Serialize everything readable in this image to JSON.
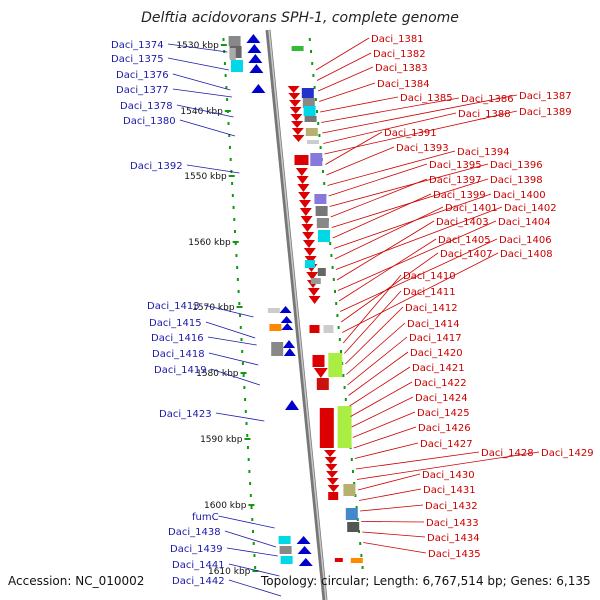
{
  "title": "Delftia acidovorans SPH-1, complete genome",
  "accession": "Accession: NC_010002",
  "summary": "Topology: circular; Length: 6,767,514 bp; Genes: 6,135",
  "colors": {
    "forward": "#0000cc",
    "reverse": "#dd0000",
    "label_left": "#1a1aaa",
    "label_right": "#cc0000",
    "ruler": "#119911",
    "backbone": "#999999"
  },
  "scale_ticks": [
    "1530 kbp",
    "1540 kbp",
    "1550 kbp",
    "1560 kbp",
    "1570 kbp",
    "1580 kbp",
    "1590 kbp",
    "1600 kbp",
    "1610 kbp"
  ],
  "left_labels": [
    "Daci_1374",
    "Daci_1375",
    "Daci_1376",
    "Daci_1377",
    "Daci_1378",
    "Daci_1380",
    "Daci_1392",
    "Daci_1413",
    "Daci_1415",
    "Daci_1416",
    "Daci_1418",
    "Daci_1419",
    "Daci_1423",
    "fumC",
    "Daci_1438",
    "Daci_1439",
    "Daci_1441",
    "Daci_1442"
  ],
  "right_labels": [
    "Daci_1381",
    "Daci_1382",
    "Daci_1383",
    "Daci_1384",
    "Daci_1385",
    "Daci_1386",
    "Daci_1387",
    "Daci_1388",
    "Daci_1389",
    "Daci_1391",
    "Daci_1393",
    "Daci_1394",
    "Daci_1395",
    "Daci_1396",
    "Daci_1397",
    "Daci_1398",
    "Daci_1399",
    "Daci_1400",
    "Daci_1401",
    "Daci_1402",
    "Daci_1403",
    "Daci_1404",
    "Daci_1405",
    "Daci_1406",
    "Daci_1407",
    "Daci_1408",
    "Daci_1410",
    "Daci_1411",
    "Daci_1412",
    "Daci_1414",
    "Daci_1417",
    "Daci_1420",
    "Daci_1421",
    "Daci_1422",
    "Daci_1424",
    "Daci_1425",
    "Daci_1426",
    "Daci_1427",
    "Daci_1428",
    "Daci_1429",
    "Daci_1430",
    "Daci_1431",
    "Daci_1432",
    "Daci_1433",
    "Daci_1434",
    "Daci_1435"
  ]
}
